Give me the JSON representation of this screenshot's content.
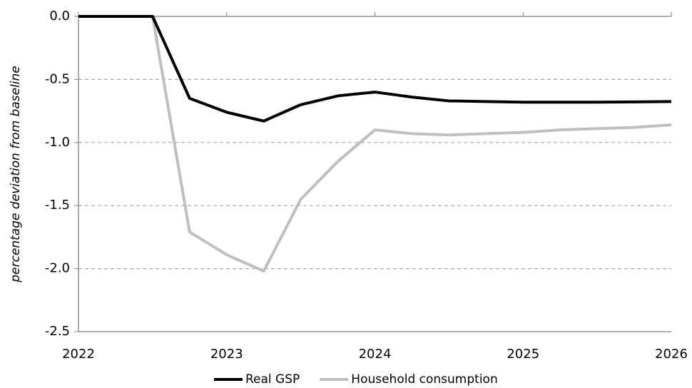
{
  "chart_data": {
    "type": "line",
    "y_label": "percentage deviation from baseline",
    "x": [
      2022,
      2022.25,
      2022.5,
      2022.75,
      2023,
      2023.25,
      2023.5,
      2023.75,
      2024,
      2024.25,
      2024.5,
      2024.75,
      2025,
      2025.25,
      2025.5,
      2025.75,
      2026
    ],
    "series": [
      {
        "name": "Real GSP",
        "color": "#000000",
        "values": [
          0,
          0,
          0,
          -0.65,
          -0.76,
          -0.83,
          -0.7,
          -0.63,
          -0.6,
          -0.64,
          -0.67,
          -0.675,
          -0.68,
          -0.68,
          -0.68,
          -0.678,
          -0.675
        ]
      },
      {
        "name": "Household consumption",
        "color": "#bfbfbf",
        "values": [
          0,
          0,
          0,
          -1.71,
          -1.89,
          -2.02,
          -1.45,
          -1.15,
          -0.9,
          -0.93,
          -0.94,
          -0.93,
          -0.92,
          -0.9,
          -0.89,
          -0.88,
          -0.86
        ]
      }
    ],
    "xlim": [
      2022,
      2026
    ],
    "xticks": [
      2022,
      2023,
      2024,
      2025,
      2026
    ],
    "ylim": [
      -2.5,
      0
    ],
    "yticks": [
      {
        "value": 0,
        "label": "0.0"
      },
      -0.5,
      {
        "value": -1,
        "label": "-1.0"
      },
      -1.5,
      {
        "value": -2,
        "label": "-2.0"
      },
      -2.5
    ],
    "grid": true,
    "legend": "bottom"
  }
}
